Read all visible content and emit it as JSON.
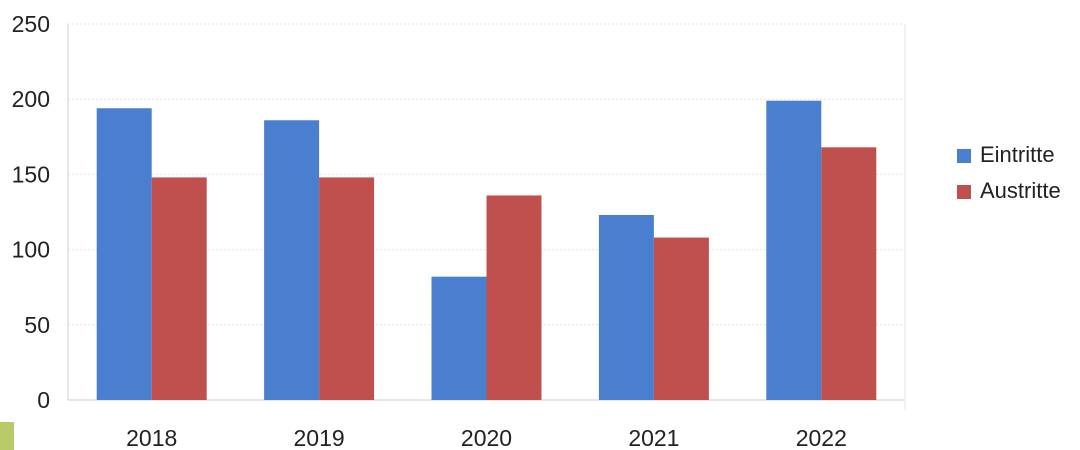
{
  "chart_data": {
    "type": "bar",
    "categories": [
      "2018",
      "2019",
      "2020",
      "2021",
      "2022"
    ],
    "series": [
      {
        "name": "Eintritte",
        "values": [
          194,
          186,
          82,
          123,
          199
        ],
        "color": "#4a7fd0"
      },
      {
        "name": "Austritte",
        "values": [
          148,
          148,
          136,
          108,
          168
        ],
        "color": "#c0504d"
      }
    ],
    "yticks": [
      "0",
      "50",
      "100",
      "150",
      "200",
      "250"
    ],
    "ylim": [
      0,
      250
    ],
    "title": "",
    "xlabel": "",
    "ylabel": "",
    "grid": true,
    "legend_position": "right"
  }
}
